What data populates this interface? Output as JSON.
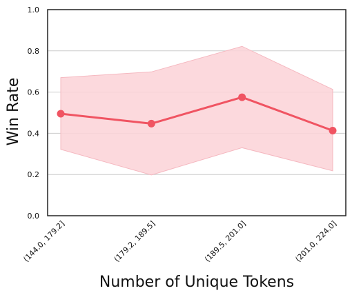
{
  "chart_data": {
    "type": "line",
    "xlabel": "Number of Unique Tokens",
    "ylabel": "Win Rate",
    "categories": [
      "(144.0, 179.2]",
      "(179.2, 189.5]",
      "(189.5, 201.0]",
      "(201.0, 224.0]"
    ],
    "series": [
      {
        "values": [
          0.495,
          0.447,
          0.575,
          0.413
        ],
        "ci_lower": [
          0.322,
          0.198,
          0.33,
          0.218
        ],
        "ci_upper": [
          0.67,
          0.698,
          0.822,
          0.613
        ]
      }
    ],
    "ylim": [
      0.0,
      1.0
    ],
    "yticks": [
      "0.0",
      "0.2",
      "0.4",
      "0.6",
      "0.8",
      "1.0"
    ],
    "grid": "horizontal",
    "colors": {
      "line": "#f05462",
      "band": "#fbd2d7",
      "band_edge": "#f5b8c0",
      "grid": "#cccccc",
      "axis": "#222222"
    }
  }
}
